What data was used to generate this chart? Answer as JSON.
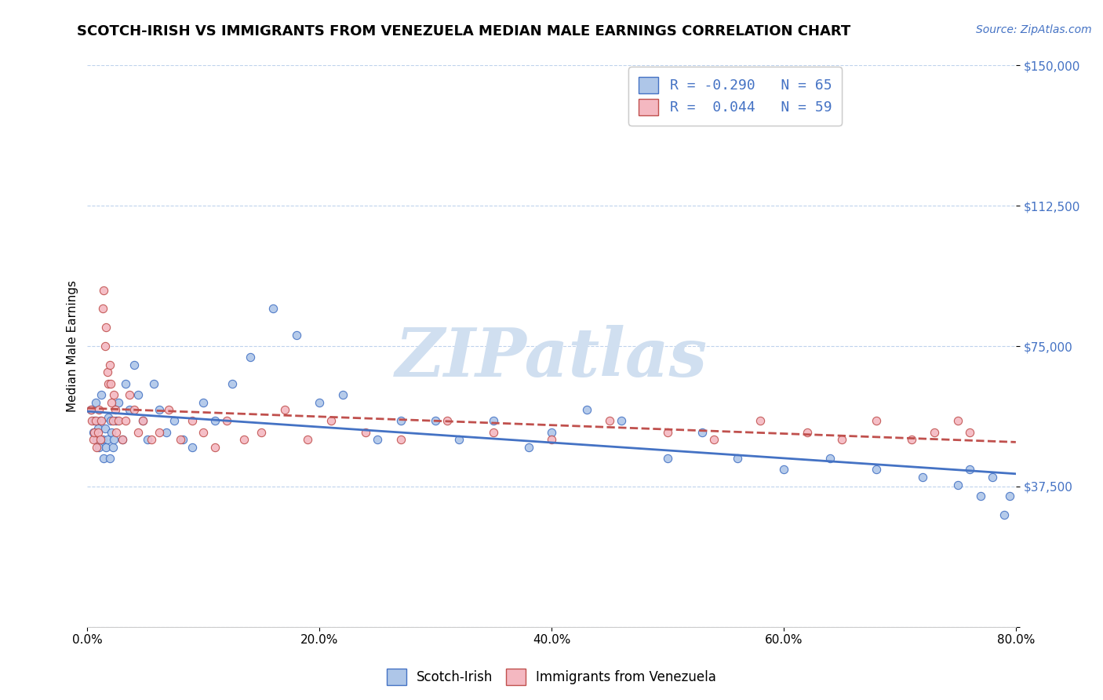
{
  "title": "SCOTCH-IRISH VS IMMIGRANTS FROM VENEZUELA MEDIAN MALE EARNINGS CORRELATION CHART",
  "source_text": "Source: ZipAtlas.com",
  "ylabel": "Median Male Earnings",
  "xlim": [
    0,
    0.8
  ],
  "ylim": [
    0,
    150000
  ],
  "yticks": [
    0,
    37500,
    75000,
    112500,
    150000
  ],
  "ytick_labels": [
    "",
    "$37,500",
    "$75,000",
    "$112,500",
    "$150,000"
  ],
  "xtick_labels": [
    "0.0%",
    "20.0%",
    "40.0%",
    "60.0%",
    "80.0%"
  ],
  "xticks": [
    0.0,
    0.2,
    0.4,
    0.6,
    0.8
  ],
  "blue_fill": "#aec6e8",
  "pink_fill": "#f4b8c1",
  "trend_blue": "#4472c4",
  "trend_pink": "#c0504d",
  "legend_R1": "-0.290",
  "legend_N1": "65",
  "legend_R2": " 0.044",
  "legend_N2": "59",
  "watermark": "ZIPatlas",
  "watermark_color": "#d0dff0",
  "title_fontsize": 13,
  "label_fontsize": 11,
  "tick_fontsize": 11,
  "blue_scatter_x": [
    0.003,
    0.005,
    0.006,
    0.007,
    0.008,
    0.009,
    0.01,
    0.011,
    0.012,
    0.013,
    0.014,
    0.015,
    0.016,
    0.017,
    0.018,
    0.019,
    0.02,
    0.021,
    0.022,
    0.023,
    0.025,
    0.027,
    0.03,
    0.033,
    0.036,
    0.04,
    0.044,
    0.048,
    0.052,
    0.057,
    0.062,
    0.068,
    0.075,
    0.082,
    0.09,
    0.1,
    0.11,
    0.125,
    0.14,
    0.16,
    0.18,
    0.2,
    0.22,
    0.25,
    0.27,
    0.3,
    0.32,
    0.35,
    0.38,
    0.4,
    0.43,
    0.46,
    0.5,
    0.53,
    0.56,
    0.6,
    0.64,
    0.68,
    0.72,
    0.75,
    0.76,
    0.77,
    0.78,
    0.79,
    0.795
  ],
  "blue_scatter_y": [
    58000,
    52000,
    55000,
    60000,
    50000,
    53000,
    48000,
    55000,
    62000,
    50000,
    45000,
    53000,
    48000,
    50000,
    56000,
    45000,
    55000,
    52000,
    48000,
    50000,
    55000,
    60000,
    50000,
    65000,
    58000,
    70000,
    62000,
    55000,
    50000,
    65000,
    58000,
    52000,
    55000,
    50000,
    48000,
    60000,
    55000,
    65000,
    72000,
    85000,
    78000,
    60000,
    62000,
    50000,
    55000,
    55000,
    50000,
    55000,
    48000,
    52000,
    58000,
    55000,
    45000,
    52000,
    45000,
    42000,
    45000,
    42000,
    40000,
    38000,
    42000,
    35000,
    40000,
    30000,
    35000
  ],
  "pink_scatter_x": [
    0.003,
    0.004,
    0.005,
    0.006,
    0.007,
    0.008,
    0.009,
    0.01,
    0.011,
    0.012,
    0.013,
    0.014,
    0.015,
    0.016,
    0.017,
    0.018,
    0.019,
    0.02,
    0.021,
    0.022,
    0.023,
    0.024,
    0.025,
    0.027,
    0.03,
    0.033,
    0.036,
    0.04,
    0.044,
    0.048,
    0.055,
    0.062,
    0.07,
    0.08,
    0.09,
    0.1,
    0.11,
    0.12,
    0.135,
    0.15,
    0.17,
    0.19,
    0.21,
    0.24,
    0.27,
    0.31,
    0.35,
    0.4,
    0.45,
    0.5,
    0.54,
    0.58,
    0.62,
    0.65,
    0.68,
    0.71,
    0.73,
    0.75,
    0.76
  ],
  "pink_scatter_y": [
    58000,
    55000,
    50000,
    52000,
    55000,
    48000,
    52000,
    58000,
    50000,
    55000,
    85000,
    90000,
    75000,
    80000,
    68000,
    65000,
    70000,
    65000,
    60000,
    55000,
    62000,
    58000,
    52000,
    55000,
    50000,
    55000,
    62000,
    58000,
    52000,
    55000,
    50000,
    52000,
    58000,
    50000,
    55000,
    52000,
    48000,
    55000,
    50000,
    52000,
    58000,
    50000,
    55000,
    52000,
    50000,
    55000,
    52000,
    50000,
    55000,
    52000,
    50000,
    55000,
    52000,
    50000,
    55000,
    50000,
    52000,
    55000,
    52000
  ]
}
